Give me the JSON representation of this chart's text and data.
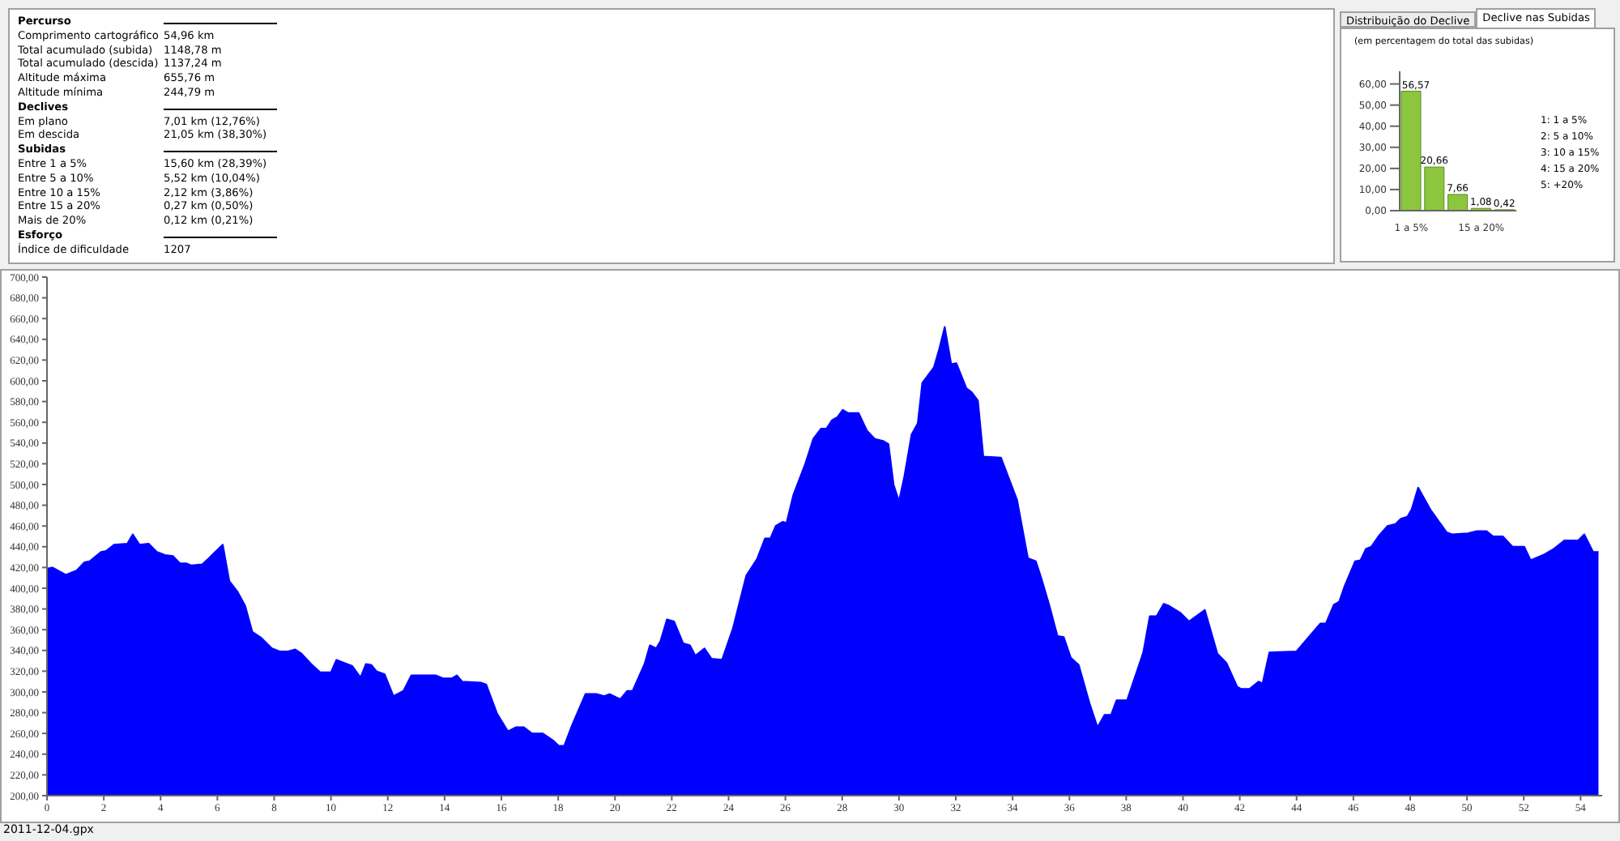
{
  "chart_data": [
    {
      "type": "other",
      "categories": [
        "Percurso",
        "Comprimento cartográfico",
        "Total acumulado (subida)",
        "Total acumulado (descida)",
        "Altitude máxima",
        "Altitude mínima",
        "Declives",
        "Em plano",
        "Em descida",
        "Subidas",
        "Entre 1 a 5%",
        "Entre 5 a 10%",
        "Entre 10 a 15%",
        "Entre 15 a 20%",
        "Mais de 20%",
        "Esforço",
        "Índice de dificuldade"
      ],
      "value_labels": [
        null,
        "54,96 km",
        "1148,78 m",
        "1137,24 m",
        "655,76 m",
        "244,79 m",
        null,
        "7,01 km (12,76%)",
        "21,05 km (38,30%)",
        null,
        "15,60 km (28,39%)",
        "5,52 km (10,04%)",
        "2,12 km (3,86%)",
        "0,27 km (0,50%)",
        "0,12 km (0,21%)",
        null,
        "1207"
      ]
    },
    {
      "type": "bar",
      "subtitle": "(em percentagem do total das subidas)",
      "annotations": [
        "Distribuição do Declive",
        "Declive nas Subidas",
        "1: 1 a 5%",
        "2: 5 a 10%",
        "3: 10 a 15%",
        "4: 15 a 20%",
        "5: +20%"
      ],
      "categories": [
        "1 a 5%",
        null,
        null,
        "15 a 20%",
        null
      ],
      "values": [
        56.57,
        20.66,
        7.66,
        1.08,
        0.42
      ],
      "value_labels": [
        "56,57",
        "20,66",
        "7,66",
        "1,08",
        "0,42"
      ],
      "color": "#8cc63f",
      "ylim": [
        0,
        66
      ],
      "yticks": [
        {
          "value": 0,
          "label": "0,00"
        },
        {
          "value": 10,
          "label": "10,00"
        },
        {
          "value": 20,
          "label": "20,00"
        },
        {
          "value": 30,
          "label": "30,00"
        },
        {
          "value": 40,
          "label": "40,00"
        },
        {
          "value": 50,
          "label": "50,00"
        },
        {
          "value": 60,
          "label": "60,00"
        }
      ]
    },
    {
      "type": "area",
      "color": "#0000ff",
      "annotations": [
        "2011-12-04.gpx"
      ],
      "x": [
        0,
        0.19,
        0.66,
        1.04,
        1.32,
        1.5,
        1.9,
        2.08,
        2.36,
        2.83,
        3.02,
        3.26,
        3.58,
        3.87,
        4.15,
        4.43,
        4.68,
        4.9,
        5.09,
        5.47,
        5.85,
        6.19,
        6.42,
        6.7,
        6.98,
        7.23,
        7.55,
        7.92,
        8.21,
        8.49,
        8.74,
        8.96,
        9.3,
        9.62,
        10.0,
        10.19,
        10.75,
        11.04,
        11.23,
        11.42,
        11.6,
        11.89,
        12.2,
        12.55,
        12.83,
        13.68,
        13.96,
        14.25,
        14.43,
        14.62,
        15.28,
        15.47,
        15.85,
        16.23,
        16.51,
        16.79,
        17.08,
        17.45,
        17.83,
        18.02,
        18.21,
        18.49,
        18.96,
        19.34,
        19.62,
        19.81,
        20.19,
        20.43,
        20.62,
        21.04,
        21.23,
        21.45,
        21.6,
        21.83,
        22.08,
        22.4,
        22.64,
        22.83,
        23.15,
        23.4,
        23.77,
        24.15,
        24.62,
        25.0,
        25.28,
        25.47,
        25.66,
        25.9,
        26.04,
        26.28,
        26.7,
        26.98,
        27.26,
        27.45,
        27.64,
        27.83,
        28.02,
        28.2,
        28.58,
        28.87,
        29.15,
        29.44,
        29.63,
        29.81,
        30.0,
        30.19,
        30.44,
        30.66,
        30.82,
        31.23,
        31.42,
        31.61,
        31.84,
        32.02,
        32.37,
        32.56,
        32.78,
        32.97,
        33.59,
        34.16,
        34.54,
        34.82,
        35.01,
        35.29,
        35.58,
        35.8,
        36.05,
        36.33,
        36.71,
        36.99,
        37.24,
        37.47,
        37.66,
        38.03,
        38.6,
        38.83,
        39.07,
        39.32,
        39.51,
        39.92,
        40.21,
        40.77,
        41.21,
        41.53,
        41.91,
        42.04,
        42.34,
        42.66,
        42.8,
        43.04,
        43.99,
        44.46,
        44.84,
        45.03,
        45.31,
        45.5,
        45.69,
        46.06,
        46.25,
        46.44,
        46.63,
        46.88,
        47.2,
        47.48,
        47.67,
        47.9,
        48.05,
        48.28,
        48.71,
        49.28,
        49.47,
        50.03,
        50.32,
        50.69,
        50.92,
        51.26,
        51.6,
        52.02,
        52.24,
        52.68,
        53.06,
        53.43,
        53.91,
        54.13,
        54.44,
        54.63
      ],
      "values": [
        419,
        420,
        413,
        417,
        425,
        426,
        435,
        436,
        442,
        443,
        452,
        442,
        443,
        435,
        432,
        431,
        424,
        424,
        422,
        423,
        433,
        442,
        407,
        397,
        383,
        358,
        352,
        342,
        339,
        339,
        341,
        337,
        327,
        319,
        319,
        331,
        325,
        314,
        327,
        326,
        320,
        317,
        296,
        301,
        316,
        316,
        313,
        313,
        316,
        310,
        309,
        307,
        279,
        262,
        266,
        266,
        260,
        260,
        253,
        248,
        248,
        268,
        298,
        298,
        296,
        298,
        293,
        301,
        301,
        327,
        345,
        342,
        349,
        370,
        368,
        347,
        345,
        335,
        342,
        332,
        331,
        361,
        412,
        428,
        448,
        448,
        460,
        464,
        463,
        490,
        520,
        544,
        554,
        554,
        562,
        565,
        572,
        569,
        569,
        552,
        544,
        542,
        539,
        500,
        484,
        508,
        548,
        559,
        598,
        613,
        631,
        652,
        616,
        617,
        593,
        589,
        581,
        527,
        526,
        485,
        429,
        426,
        410,
        384,
        354,
        353,
        333,
        326,
        289,
        266,
        278,
        278,
        292,
        292,
        338,
        373,
        373,
        385,
        383,
        376,
        368,
        379,
        337,
        328,
        305,
        303,
        303,
        310,
        308,
        338,
        339,
        354,
        366,
        366,
        384,
        387,
        402,
        426,
        427,
        438,
        440,
        450,
        460,
        462,
        467,
        469,
        476,
        497,
        476,
        454,
        452,
        453,
        455,
        455,
        450,
        450,
        440,
        440,
        427,
        432,
        438,
        446,
        446,
        452,
        435,
        435
      ],
      "xlim": [
        0,
        54.76
      ],
      "xticks": [
        0,
        2,
        4,
        6,
        8,
        10,
        12,
        14,
        16,
        18,
        20,
        22,
        24,
        26,
        28,
        30,
        32,
        34,
        36,
        38,
        40,
        42,
        44,
        46,
        48,
        50,
        52,
        54
      ],
      "ylim": [
        200,
        700
      ],
      "yticks": [
        {
          "value": 200,
          "label": "200,00"
        },
        {
          "value": 220,
          "label": "220,00"
        },
        {
          "value": 240,
          "label": "240,00"
        },
        {
          "value": 260,
          "label": "260,00"
        },
        {
          "value": 280,
          "label": "280,00"
        },
        {
          "value": 300,
          "label": "300,00"
        },
        {
          "value": 320,
          "label": "320,00"
        },
        {
          "value": 340,
          "label": "340,00"
        },
        {
          "value": 360,
          "label": "360,00"
        },
        {
          "value": 380,
          "label": "380,00"
        },
        {
          "value": 400,
          "label": "400,00"
        },
        {
          "value": 420,
          "label": "420,00"
        },
        {
          "value": 440,
          "label": "440,00"
        },
        {
          "value": 460,
          "label": "460,00"
        },
        {
          "value": 480,
          "label": "480,00"
        },
        {
          "value": 500,
          "label": "500,00"
        },
        {
          "value": 520,
          "label": "520,00"
        },
        {
          "value": 540,
          "label": "540,00"
        },
        {
          "value": 560,
          "label": "560,00"
        },
        {
          "value": 580,
          "label": "580,00"
        },
        {
          "value": 600,
          "label": "600,00"
        },
        {
          "value": 620,
          "label": "620,00"
        },
        {
          "value": 640,
          "label": "640,00"
        },
        {
          "value": 660,
          "label": "660,00"
        },
        {
          "value": 680,
          "label": "680,00"
        },
        {
          "value": 700,
          "label": "700,00"
        }
      ]
    }
  ]
}
